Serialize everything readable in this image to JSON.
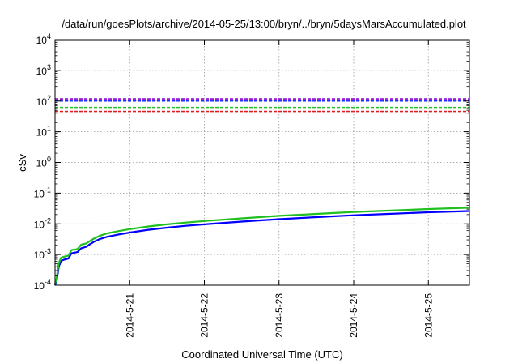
{
  "chart_data": {
    "type": "line",
    "title": "/data/run/goesPlots/archive/2014-05-25/13:00/bryn/../bryn/5daysMarsAccumulated.plot",
    "xlabel": "Coordinated Universal Time (UTC)",
    "ylabel": "cSv",
    "yscale": "log",
    "ylim_exp": [
      -4,
      4
    ],
    "xlim_days": [
      0.0,
      5.55
    ],
    "x_ticks": [
      {
        "day": 1.0,
        "label": "2014-5-21"
      },
      {
        "day": 2.0,
        "label": "2014-5-22"
      },
      {
        "day": 3.0,
        "label": "2014-5-23"
      },
      {
        "day": 4.0,
        "label": "2014-5-24"
      },
      {
        "day": 5.0,
        "label": "2014-5-25"
      }
    ],
    "y_ticks": [
      {
        "exp": -4,
        "base": "10",
        "sup": "-4"
      },
      {
        "exp": -3,
        "base": "10",
        "sup": "-3"
      },
      {
        "exp": -2,
        "base": "10",
        "sup": "-2"
      },
      {
        "exp": -1,
        "base": "10",
        "sup": "-1"
      },
      {
        "exp": 0,
        "base": "10",
        "sup": "0"
      },
      {
        "exp": 1,
        "base": "10",
        "sup": "1"
      },
      {
        "exp": 2,
        "base": "10",
        "sup": "2"
      },
      {
        "exp": 3,
        "base": "10",
        "sup": "3"
      },
      {
        "exp": 4,
        "base": "10",
        "sup": "4"
      }
    ],
    "grid": true,
    "reference_lines": [
      {
        "value": 118,
        "color": "#9400d3"
      },
      {
        "value": 100,
        "color": "#2030ff"
      },
      {
        "value": 62,
        "color": "#20c020"
      },
      {
        "value": 46,
        "color": "#e02020"
      }
    ],
    "series": [
      {
        "color": "#0000ff",
        "width": 2.2,
        "points": [
          [
            0.0,
            0.0001
          ],
          [
            0.02,
            0.00013
          ],
          [
            0.05,
            0.0004
          ],
          [
            0.08,
            0.00062
          ],
          [
            0.12,
            0.00068
          ],
          [
            0.18,
            0.00074
          ],
          [
            0.22,
            0.0011
          ],
          [
            0.3,
            0.0012
          ],
          [
            0.35,
            0.0016
          ],
          [
            0.42,
            0.0018
          ],
          [
            0.47,
            0.0022
          ],
          [
            0.52,
            0.0026
          ],
          [
            0.6,
            0.0032
          ],
          [
            0.7,
            0.0038
          ],
          [
            0.85,
            0.0045
          ],
          [
            1.0,
            0.0052
          ],
          [
            1.25,
            0.0064
          ],
          [
            1.5,
            0.0075
          ],
          [
            1.75,
            0.0086
          ],
          [
            2.0,
            0.0096
          ],
          [
            2.5,
            0.0118
          ],
          [
            3.0,
            0.0142
          ],
          [
            3.5,
            0.0165
          ],
          [
            4.0,
            0.019
          ],
          [
            4.5,
            0.0212
          ],
          [
            5.0,
            0.0238
          ],
          [
            5.55,
            0.026
          ]
        ]
      },
      {
        "color": "#20c020",
        "width": 2.2,
        "points": [
          [
            0.0,
            0.00011
          ],
          [
            0.02,
            0.00016
          ],
          [
            0.05,
            0.00052
          ],
          [
            0.08,
            0.00078
          ],
          [
            0.12,
            0.00085
          ],
          [
            0.18,
            0.00092
          ],
          [
            0.22,
            0.0014
          ],
          [
            0.3,
            0.0015
          ],
          [
            0.35,
            0.0021
          ],
          [
            0.42,
            0.0023
          ],
          [
            0.47,
            0.0028
          ],
          [
            0.52,
            0.0033
          ],
          [
            0.6,
            0.0041
          ],
          [
            0.7,
            0.0049
          ],
          [
            0.85,
            0.0058
          ],
          [
            1.0,
            0.0067
          ],
          [
            1.25,
            0.0082
          ],
          [
            1.5,
            0.0096
          ],
          [
            1.75,
            0.011
          ],
          [
            2.0,
            0.0123
          ],
          [
            2.5,
            0.0151
          ],
          [
            3.0,
            0.0182
          ],
          [
            3.5,
            0.0211
          ],
          [
            4.0,
            0.0243
          ],
          [
            4.5,
            0.0271
          ],
          [
            5.0,
            0.0304
          ],
          [
            5.55,
            0.0335
          ]
        ]
      }
    ]
  }
}
